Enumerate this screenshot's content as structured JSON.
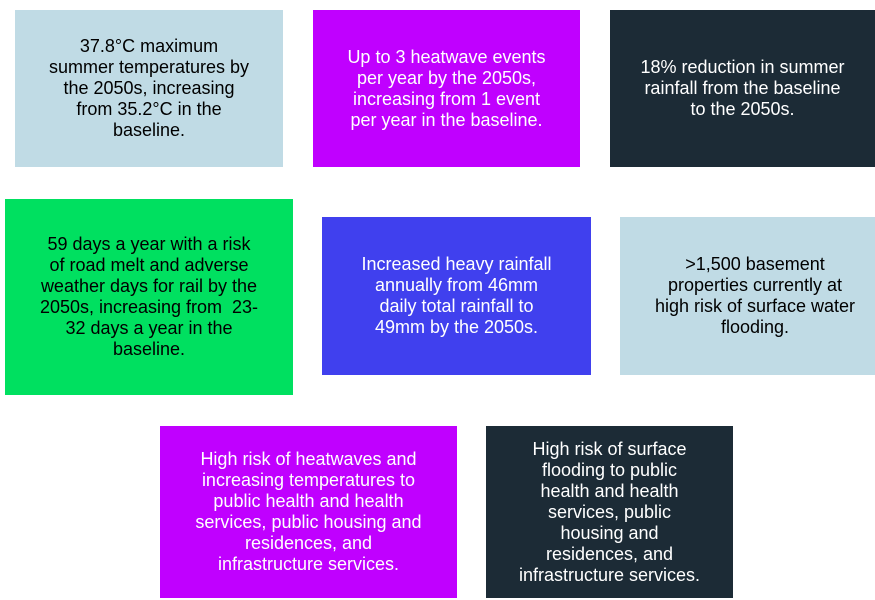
{
  "boxes": [
    {
      "lines": [
        "37.8°C maximum",
        "summer temperatures by",
        "the 2050s, increasing",
        "from 35.2°C in the",
        "baseline."
      ]
    },
    {
      "lines": [
        "Up to 3 heatwave events",
        "per year by the 2050s,",
        "increasing from 1 event",
        "per year in the baseline."
      ]
    },
    {
      "lines": [
        "18% reduction in summer",
        "rainfall from the baseline",
        "to the 2050s."
      ]
    },
    {
      "lines": [
        "59 days a year with a risk",
        "of road melt and adverse",
        "weather days for rail by the",
        "2050s, increasing from  23-",
        "32 days a year in the",
        "baseline."
      ]
    },
    {
      "lines": [
        "Increased heavy rainfall",
        "annually from 46mm",
        "daily total rainfall to",
        "49mm by the 2050s."
      ]
    },
    {
      "lines": [
        ">1,500 basement",
        "properties currently at",
        "high risk of surface water",
        "flooding."
      ]
    },
    {
      "lines": [
        "High risk of heatwaves and",
        "increasing temperatures to",
        "public health and health",
        "services, public housing and",
        "residences, and",
        "infrastructure services."
      ]
    },
    {
      "lines": [
        "High risk of surface",
        "flooding to public",
        "health and health",
        "services, public",
        "housing and",
        "residences, and",
        "infrastructure services."
      ]
    }
  ]
}
